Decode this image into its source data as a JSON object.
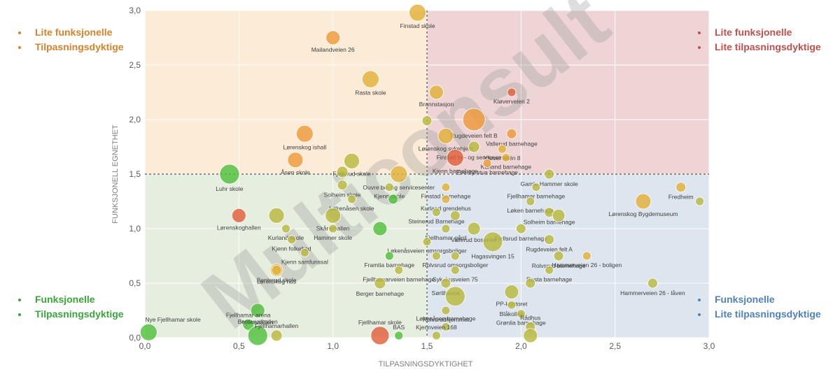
{
  "quadrant_legends": {
    "top_left": [
      "Lite funksjonelle",
      "Tilpasningsdyktige"
    ],
    "top_right": [
      "Lite funksjonelle",
      "Lite tilpasningsdyktige"
    ],
    "bottom_left": [
      "Funksjonelle",
      "Tilpasningsdyktige"
    ],
    "bottom_right": [
      "Funksjonelle",
      "Lite tilpasningsdyktige"
    ]
  },
  "watermark": "Multiconsult",
  "colors": {
    "orange": "#ee9a3a",
    "red": "#e0603a",
    "gold": "#e2b13a",
    "olive": "#b8b83e",
    "green": "#4fbf3a",
    "q_top_left": "#fcebd6",
    "q_top_right": "#eed4d4",
    "q_bottom_left": "#e6eee0",
    "q_bottom_right": "#dde6ee"
  },
  "chart_data": {
    "type": "scatter",
    "xlabel": "TILPASNINGSDYKTIGHET",
    "ylabel": "FUNKSJONELL EGNETHET",
    "xlim": [
      0,
      3
    ],
    "ylim": [
      0,
      3
    ],
    "x_ticks": [
      "0,0",
      "0,5",
      "1,0",
      "1,5",
      "2,0",
      "2,5",
      "3,0"
    ],
    "y_ticks": [
      "0,0",
      "0,5",
      "1,0",
      "1,5",
      "2,0",
      "2,5",
      "3,0"
    ],
    "reference_lines": {
      "x": 1.5,
      "y": 1.5
    },
    "grid": true,
    "points": [
      {
        "label": "Finstad skole",
        "x": 1.45,
        "y": 2.98,
        "size": 12,
        "color": "gold"
      },
      {
        "label": "Mailandveien 26",
        "x": 1.0,
        "y": 2.75,
        "size": 10,
        "color": "orange"
      },
      {
        "label": "Rasta skole",
        "x": 1.2,
        "y": 2.37,
        "size": 12,
        "color": "gold"
      },
      {
        "label": "Brannstasjon",
        "x": 1.55,
        "y": 2.25,
        "size": 10,
        "color": "gold"
      },
      {
        "label": "Kløverveien 2",
        "x": 1.95,
        "y": 2.25,
        "size": 6,
        "color": "red"
      },
      {
        "label": "Rugdeveien felt B",
        "x": 1.75,
        "y": 2.0,
        "size": 16,
        "color": "orange"
      },
      {
        "label": "",
        "x": 1.5,
        "y": 1.99,
        "size": 7,
        "color": "olive"
      },
      {
        "label": "Vallerud barnehage",
        "x": 1.95,
        "y": 1.87,
        "size": 7,
        "color": "orange"
      },
      {
        "label": "Lørenskog sykehjem",
        "x": 1.6,
        "y": 1.85,
        "size": 11,
        "color": "gold"
      },
      {
        "label": "Lørenskog ishall",
        "x": 0.85,
        "y": 1.87,
        "size": 12,
        "color": "orange"
      },
      {
        "label": "Kløverveien 8",
        "x": 1.9,
        "y": 1.73,
        "size": 6,
        "color": "gold"
      },
      {
        "label": "Finstad bo- og servicesenter",
        "x": 1.75,
        "y": 1.75,
        "size": 8,
        "color": "olive"
      },
      {
        "label": "Kurland barnehage",
        "x": 1.92,
        "y": 1.65,
        "size": 6,
        "color": "gold"
      },
      {
        "label": "Kjenn barnehage",
        "x": 1.65,
        "y": 1.65,
        "size": 12,
        "color": "red"
      },
      {
        "label": "Eventyrstua barnehage",
        "x": 1.82,
        "y": 1.6,
        "size": 6,
        "color": "orange"
      },
      {
        "label": "Åsen skole",
        "x": 0.8,
        "y": 1.63,
        "size": 11,
        "color": "orange"
      },
      {
        "label": "Fjellsrud skole",
        "x": 1.1,
        "y": 1.62,
        "size": 11,
        "color": "olive"
      },
      {
        "label": "",
        "x": 1.05,
        "y": 1.52,
        "size": 8,
        "color": "olive"
      },
      {
        "label": "Ouvre bo- og servicesenter",
        "x": 1.35,
        "y": 1.5,
        "size": 12,
        "color": "gold"
      },
      {
        "label": "Gamle Hammer skole",
        "x": 2.15,
        "y": 1.5,
        "size": 7,
        "color": "olive"
      },
      {
        "label": "Luhr skole",
        "x": 0.45,
        "y": 1.5,
        "size": 14,
        "color": "green"
      },
      {
        "label": "Solheim skole",
        "x": 1.05,
        "y": 1.4,
        "size": 7,
        "color": "olive"
      },
      {
        "label": "Finstad barnehage",
        "x": 1.6,
        "y": 1.38,
        "size": 6,
        "color": "gold"
      },
      {
        "label": "Kjenn skole",
        "x": 1.3,
        "y": 1.38,
        "size": 6,
        "color": "olive"
      },
      {
        "label": "Fjellhamar barnehage",
        "x": 2.08,
        "y": 1.38,
        "size": 6,
        "color": "olive"
      },
      {
        "label": "Fredheim",
        "x": 2.85,
        "y": 1.38,
        "size": 7,
        "color": "gold"
      },
      {
        "label": "Lørenskoghallen",
        "x": 0.5,
        "y": 1.12,
        "size": 10,
        "color": "red"
      },
      {
        "label": "Kurland grendehus",
        "x": 1.6,
        "y": 1.27,
        "size": 6,
        "color": "gold"
      },
      {
        "label": "Løkenåsen skole",
        "x": 1.1,
        "y": 1.27,
        "size": 6,
        "color": "olive"
      },
      {
        "label": "Løken barnehage",
        "x": 2.05,
        "y": 1.25,
        "size": 6,
        "color": "olive"
      },
      {
        "label": "Lørenskog Bygdemuseum",
        "x": 2.65,
        "y": 1.25,
        "size": 11,
        "color": "gold"
      },
      {
        "label": "",
        "x": 2.95,
        "y": 1.25,
        "size": 6,
        "color": "olive"
      },
      {
        "label": "Steinerud Barnehage",
        "x": 1.55,
        "y": 1.15,
        "size": 6,
        "color": "olive"
      },
      {
        "label": "Solheim barnehage",
        "x": 2.15,
        "y": 1.15,
        "size": 7,
        "color": "olive"
      },
      {
        "label": "Skårerhallen",
        "x": 1.0,
        "y": 1.12,
        "size": 11,
        "color": "olive"
      },
      {
        "label": "",
        "x": 1.32,
        "y": 1.27,
        "size": 7,
        "color": "green"
      },
      {
        "label": "",
        "x": 1.65,
        "y": 1.12,
        "size": 7,
        "color": "olive"
      },
      {
        "label": "",
        "x": 2.2,
        "y": 1.12,
        "size": 9,
        "color": "olive"
      },
      {
        "label": "",
        "x": 0.7,
        "y": 1.12,
        "size": 11,
        "color": "olive"
      },
      {
        "label": "Kurland skole",
        "x": 0.75,
        "y": 1.0,
        "size": 6,
        "color": "olive"
      },
      {
        "label": "Hammer skole",
        "x": 1.0,
        "y": 1.0,
        "size": 6,
        "color": "olive"
      },
      {
        "label": "Fjellhamar gård",
        "x": 1.6,
        "y": 1.0,
        "size": 6,
        "color": "olive"
      },
      {
        "label": "",
        "x": 1.25,
        "y": 1.0,
        "size": 10,
        "color": "green"
      },
      {
        "label": "Vallerud bosenter",
        "x": 1.75,
        "y": 1.0,
        "size": 9,
        "color": "olive"
      },
      {
        "label": "Fjellsrud barnehage",
        "x": 2.0,
        "y": 1.0,
        "size": 7,
        "color": "olive"
      },
      {
        "label": "Kjenn folkebad",
        "x": 0.78,
        "y": 0.9,
        "size": 6,
        "color": "olive"
      },
      {
        "label": "Løkenåsveien omsorgsboliger",
        "x": 1.5,
        "y": 0.88,
        "size": 6,
        "color": "olive"
      },
      {
        "label": "Hagasvingen 15",
        "x": 1.85,
        "y": 0.88,
        "size": 14,
        "color": "olive"
      },
      {
        "label": "Rugdeveien felt A",
        "x": 2.15,
        "y": 0.9,
        "size": 7,
        "color": "olive"
      },
      {
        "label": "Kjenn samfunssal",
        "x": 0.85,
        "y": 0.78,
        "size": 6,
        "color": "olive"
      },
      {
        "label": "Framtia barnehage",
        "x": 1.3,
        "y": 0.75,
        "size": 6,
        "color": "green"
      },
      {
        "label": "",
        "x": 1.55,
        "y": 0.75,
        "size": 6,
        "color": "olive"
      },
      {
        "label": "Rolvsrud omsorgsboliger",
        "x": 1.65,
        "y": 0.75,
        "size": 6,
        "color": "olive"
      },
      {
        "label": "Rolvsrud barnehage",
        "x": 2.2,
        "y": 0.75,
        "size": 7,
        "color": "olive"
      },
      {
        "label": "Hammerveien 26 - boligen",
        "x": 2.35,
        "y": 0.75,
        "size": 6,
        "color": "gold"
      },
      {
        "label": "Lørenskog hus",
        "x": 0.7,
        "y": 0.62,
        "size": 9,
        "color": "gold"
      },
      {
        "label": "Sykehusveien 75",
        "x": 1.65,
        "y": 0.62,
        "size": 6,
        "color": "olive"
      },
      {
        "label": "Rasta barnehage",
        "x": 2.15,
        "y": 0.62,
        "size": 6,
        "color": "olive"
      },
      {
        "label": "Fjellhamarveien barnehage",
        "x": 1.35,
        "y": 0.62,
        "size": 6,
        "color": "olive"
      },
      {
        "label": "Benterud skole",
        "x": 0.7,
        "y": 0.62,
        "size": 7,
        "color": "gold"
      },
      {
        "label": "Berger barnehage",
        "x": 1.25,
        "y": 0.5,
        "size": 8,
        "color": "olive"
      },
      {
        "label": "Sørlihavna",
        "x": 1.6,
        "y": 0.5,
        "size": 7,
        "color": "olive"
      },
      {
        "label": "PP-kontoret",
        "x": 1.95,
        "y": 0.42,
        "size": 10,
        "color": "olive"
      },
      {
        "label": "",
        "x": 2.05,
        "y": 0.5,
        "size": 7,
        "color": "olive"
      },
      {
        "label": "Hammerveien 26 - låven",
        "x": 2.7,
        "y": 0.5,
        "size": 7,
        "color": "olive"
      },
      {
        "label": "",
        "x": 1.65,
        "y": 0.38,
        "size": 14,
        "color": "olive"
      },
      {
        "label": "Kjennhallen",
        "x": 0.6,
        "y": 0.25,
        "size": 10,
        "color": "green"
      },
      {
        "label": "Blåkollen",
        "x": 1.95,
        "y": 0.3,
        "size": 6,
        "color": "olive"
      },
      {
        "label": "Grønlia barnehage",
        "x": 2.0,
        "y": 0.22,
        "size": 6,
        "color": "olive"
      },
      {
        "label": "Rolvsrudhjemmet",
        "x": 1.6,
        "y": 0.25,
        "size": 6,
        "color": "olive"
      },
      {
        "label": "Fjellhamar arena",
        "x": 0.55,
        "y": 0.12,
        "size": 8,
        "color": "green"
      },
      {
        "label": "Nye Fjellhamar skole",
        "x": 0.02,
        "y": 0.05,
        "size": 12,
        "color": "green"
      },
      {
        "label": "Benterudhallen",
        "x": 0.6,
        "y": 0.02,
        "size": 14,
        "color": "green"
      },
      {
        "label": "Fjellhamarhallen",
        "x": 0.7,
        "y": 0.02,
        "size": 8,
        "color": "olive"
      },
      {
        "label": "Fjellhamar skole",
        "x": 1.25,
        "y": 0.02,
        "size": 13,
        "color": "red"
      },
      {
        "label": "BAS",
        "x": 1.35,
        "y": 0.02,
        "size": 6,
        "color": "green"
      },
      {
        "label": "Løkenåsen barnehage",
        "x": 1.6,
        "y": 0.1,
        "size": 6,
        "color": "olive"
      },
      {
        "label": "Rådhus",
        "x": 2.05,
        "y": 0.1,
        "size": 7,
        "color": "olive"
      },
      {
        "label": "Kjennveien 168",
        "x": 1.55,
        "y": 0.02,
        "size": 6,
        "color": "olive"
      },
      {
        "label": "",
        "x": 2.05,
        "y": 0.02,
        "size": 10,
        "color": "olive"
      }
    ]
  }
}
